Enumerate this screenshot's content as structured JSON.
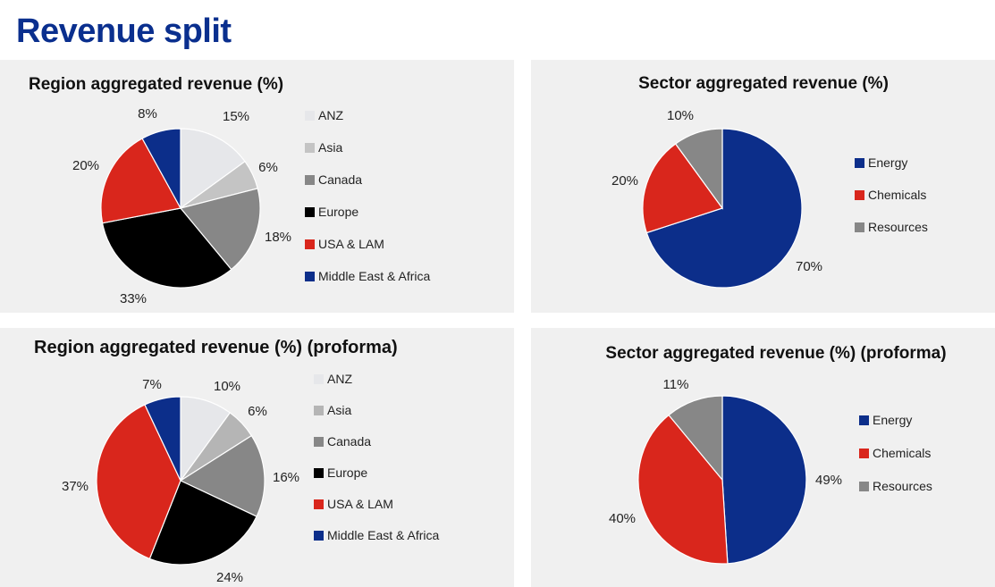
{
  "page": {
    "title": "Revenue split"
  },
  "colors": {
    "anz": "#e6e7ea",
    "asia": "#c4c4c4",
    "canada": "#878787",
    "europe": "#000000",
    "usa_lam": "#d9261c",
    "mea": "#0c2e8a",
    "energy": "#0c2e8a",
    "chemicals": "#d9261c",
    "resources": "#878787"
  },
  "chart_data": [
    {
      "type": "pie",
      "title": "Region aggregated revenue (%)",
      "categories": [
        "ANZ",
        "Asia",
        "Canada",
        "Europe",
        "USA & LAM",
        "Middle East & Africa"
      ],
      "values": [
        15,
        6,
        18,
        33,
        20,
        8
      ],
      "value_labels": [
        "15%",
        "6%",
        "18%",
        "33%",
        "20%",
        "8%"
      ],
      "colors": [
        "#e6e7ea",
        "#c4c4c4",
        "#878787",
        "#000000",
        "#d9261c",
        "#0c2e8a"
      ],
      "legend_position": "right"
    },
    {
      "type": "pie",
      "title": "Sector aggregated revenue (%)",
      "categories": [
        "Energy",
        "Chemicals",
        "Resources"
      ],
      "values": [
        70,
        20,
        10
      ],
      "value_labels": [
        "70%",
        "20%",
        "10%"
      ],
      "colors": [
        "#0c2e8a",
        "#d9261c",
        "#878787"
      ],
      "legend_position": "right"
    },
    {
      "type": "pie",
      "title": "Region aggregated revenue (%) (proforma)",
      "categories": [
        "ANZ",
        "Asia",
        "Canada",
        "Europe",
        "USA & LAM",
        "Middle East & Africa"
      ],
      "values": [
        10,
        6,
        16,
        24,
        37,
        7
      ],
      "value_labels": [
        "10%",
        "6%",
        "16%",
        "24%",
        "37%",
        "7%"
      ],
      "colors": [
        "#e6e7ea",
        "#b5b5b5",
        "#878787",
        "#000000",
        "#d9261c",
        "#0c2e8a"
      ],
      "legend_position": "right"
    },
    {
      "type": "pie",
      "title": "Sector aggregated revenue (%) (proforma)",
      "categories": [
        "Energy",
        "Chemicals",
        "Resources"
      ],
      "values": [
        49,
        40,
        11
      ],
      "value_labels": [
        "49%",
        "40%",
        "11%"
      ],
      "colors": [
        "#0c2e8a",
        "#d9261c",
        "#878787"
      ],
      "legend_position": "right"
    }
  ]
}
